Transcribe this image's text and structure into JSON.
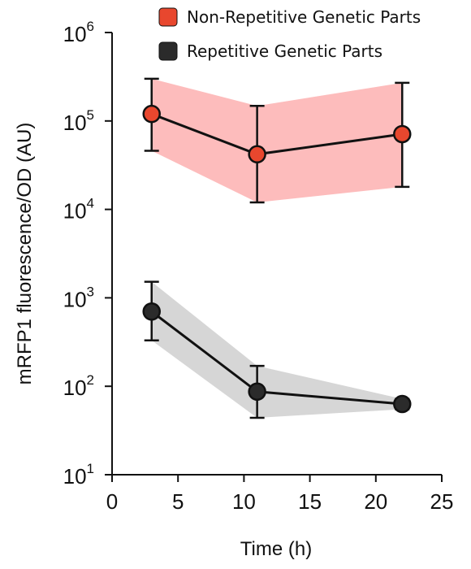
{
  "chart_data": {
    "type": "line",
    "xlabel": "Time (h)",
    "ylabel": "mRFP1 fluorescence/OD (AU)",
    "xlim": [
      0,
      25
    ],
    "x_ticks": [
      0,
      5,
      10,
      15,
      20,
      25
    ],
    "y_scale": "log",
    "ylim": [
      10,
      1000000
    ],
    "y_ticks": [
      {
        "value": 10,
        "base": "10",
        "exp": "1"
      },
      {
        "value": 100,
        "base": "10",
        "exp": "2"
      },
      {
        "value": 1000,
        "base": "10",
        "exp": "3"
      },
      {
        "value": 10000,
        "base": "10",
        "exp": "4"
      },
      {
        "value": 100000,
        "base": "10",
        "exp": "5"
      },
      {
        "value": 1000000,
        "base": "10",
        "exp": "6"
      }
    ],
    "grid": false,
    "legend_position": "top-right",
    "series": [
      {
        "name": "Non-Repetitive Genetic Parts",
        "color": "#e8472e",
        "band_color": "#fdbcbc",
        "points": [
          {
            "x": 3,
            "y": 120000,
            "low": 46000,
            "high": 300000
          },
          {
            "x": 11,
            "y": 42000,
            "low": 12000,
            "high": 148000
          },
          {
            "x": 22,
            "y": 71000,
            "low": 18000,
            "high": 270000
          }
        ]
      },
      {
        "name": "Repetitive Genetic Parts",
        "color": "#2b2b2b",
        "band_color": "#d6d6d6",
        "points": [
          {
            "x": 3,
            "y": 700,
            "low": 330,
            "high": 1520
          },
          {
            "x": 11,
            "y": 87,
            "low": 44,
            "high": 170
          },
          {
            "x": 22,
            "y": 63,
            "low": 55,
            "high": 72
          }
        ]
      }
    ]
  }
}
